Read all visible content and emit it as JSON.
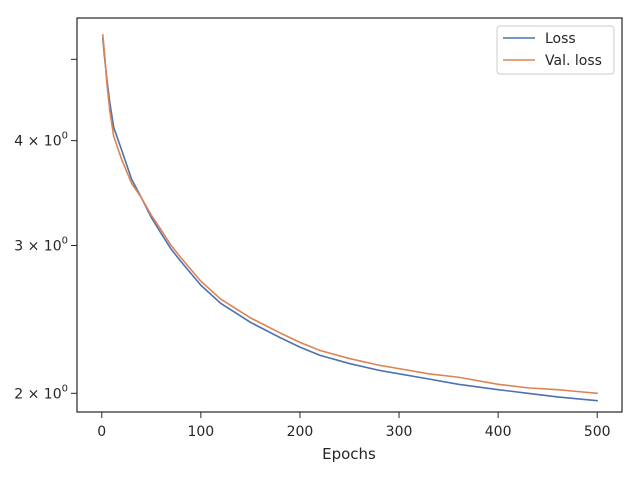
{
  "chart_data": {
    "type": "line",
    "title": "",
    "xlabel": "Epochs",
    "ylabel": "",
    "yscale": "log",
    "xlim": [
      -25,
      525
    ],
    "ylim": [
      1.9,
      5.6
    ],
    "grid": false,
    "legend_position": "top-right",
    "x_ticks": [
      {
        "value": 0,
        "label": "0"
      },
      {
        "value": 100,
        "label": "100"
      },
      {
        "value": 200,
        "label": "200"
      },
      {
        "value": 300,
        "label": "300"
      },
      {
        "value": 400,
        "label": "400"
      },
      {
        "value": 500,
        "label": "500"
      }
    ],
    "y_ticks": [
      {
        "value": 2,
        "label_base": "2 × 10",
        "label_exp": "0"
      },
      {
        "value": 3,
        "label_base": "3 × 10",
        "label_exp": "0"
      },
      {
        "value": 4,
        "label_base": "4 × 10",
        "label_exp": "0"
      },
      {
        "value": 5,
        "label_base": "",
        "label_exp": ""
      }
    ],
    "x": [
      1,
      3,
      5,
      8,
      12,
      20,
      30,
      40,
      50,
      60,
      70,
      80,
      100,
      120,
      150,
      180,
      200,
      220,
      250,
      280,
      300,
      330,
      360,
      400,
      430,
      460,
      480,
      500
    ],
    "series": [
      {
        "name": "Loss",
        "color": "#4c72b0",
        "values": [
          5.3,
          5.0,
          4.75,
          4.45,
          4.15,
          3.9,
          3.6,
          3.42,
          3.24,
          3.1,
          2.97,
          2.87,
          2.69,
          2.56,
          2.43,
          2.33,
          2.27,
          2.22,
          2.17,
          2.13,
          2.11,
          2.08,
          2.05,
          2.02,
          2.0,
          1.98,
          1.97,
          1.96
        ]
      },
      {
        "name": "Val. loss",
        "color": "#dd8452",
        "values": [
          5.35,
          5.05,
          4.7,
          4.35,
          4.05,
          3.8,
          3.56,
          3.42,
          3.26,
          3.13,
          3.0,
          2.9,
          2.72,
          2.59,
          2.46,
          2.36,
          2.3,
          2.25,
          2.2,
          2.16,
          2.14,
          2.11,
          2.09,
          2.05,
          2.03,
          2.02,
          2.01,
          2.0
        ]
      }
    ]
  }
}
